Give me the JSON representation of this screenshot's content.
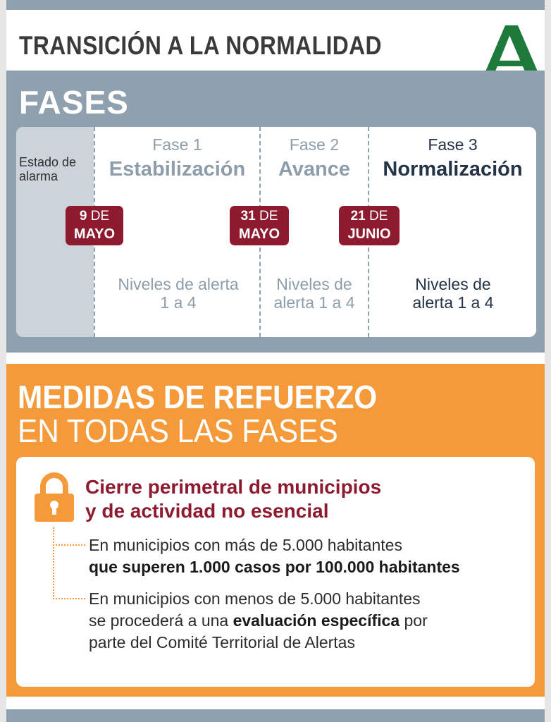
{
  "header": {
    "title": "TRANSICIÓN A LA NORMALIDAD",
    "logo_icon": "junta-andalucia-logo-icon",
    "logo_color": "#1e7a3a"
  },
  "fases": {
    "title": "FASES",
    "estado_alarma": "Estado de alarma",
    "phases": [
      {
        "num": "Fase 1",
        "name": "Estabilización",
        "levels": "Niveles de alerta 1 a 4"
      },
      {
        "num": "Fase 2",
        "name": "Avance",
        "levels": "Niveles de alerta 1 a 4"
      },
      {
        "num": "Fase 3",
        "name": "Normalización",
        "levels": "Niveles de alerta 1 a 4"
      }
    ],
    "dates": [
      {
        "day": "9",
        "de": "DE",
        "month": "MAYO"
      },
      {
        "day": "31",
        "de": "DE",
        "month": "MAYO"
      },
      {
        "day": "21",
        "de": "DE",
        "month": "JUNIO"
      }
    ]
  },
  "medidas": {
    "title_line1": "MEDIDAS DE REFUERZO",
    "title_line2": "EN TODAS LAS FASES",
    "lock_icon": "padlock-icon",
    "card_title_line1": "Cierre perimetral de municipios",
    "card_title_line2": "y de actividad no esencial",
    "item1": {
      "line1": "En municipios con más de 5.000 habitantes",
      "line2_bold": "que superen 1.000 casos por 100.000 habitantes"
    },
    "item2": {
      "line1": "En municipios con menos de 5.000 habitantes",
      "line2_pre": "se procederá a una ",
      "line2_bold": "evaluación específica",
      "line2_post": " por",
      "line3": "parte del Comité Territorial de Alertas"
    }
  },
  "colors": {
    "slate": "#8fa0ae",
    "orange": "#f59a3b",
    "maroon": "#8e1a2f",
    "green": "#1e7a3a"
  }
}
